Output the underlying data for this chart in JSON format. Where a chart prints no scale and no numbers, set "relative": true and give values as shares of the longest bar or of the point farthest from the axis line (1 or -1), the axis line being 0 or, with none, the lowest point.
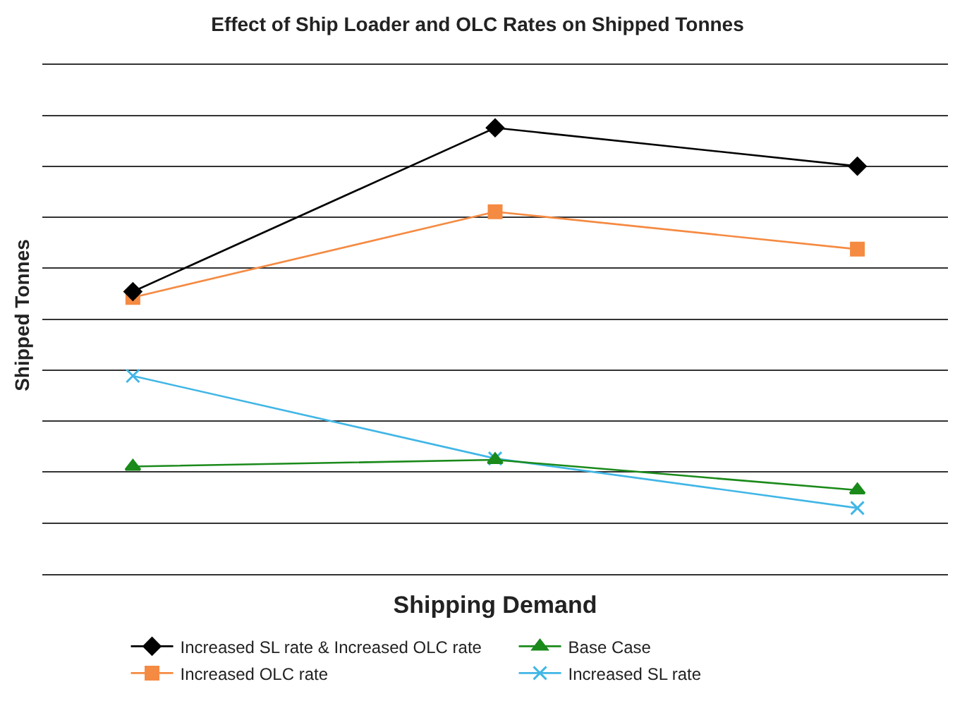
{
  "chart_data": {
    "type": "line",
    "title": "Effect of Ship Loader and OLC Rates on Shipped Tonnes",
    "xlabel": "Shipping Demand",
    "ylabel": "Shipped Tonnes",
    "relative": true,
    "categories": [
      null,
      null,
      null
    ],
    "grid": "y",
    "legend": "bottom",
    "tick_labels": false,
    "line_style": "solid",
    "series": [
      {
        "name": "Increased SL rate & Increased OLC rate",
        "color": "#000000",
        "marker": "diamond",
        "values": [
          0.633,
          1,
          0.914
        ]
      },
      {
        "name": "Base Case",
        "color": "#1a8a1a",
        "marker": "triangle",
        "values": [
          0.241,
          0.256,
          0.188
        ]
      },
      {
        "name": "Increased OLC rate",
        "color": "#f58a42",
        "marker": "square",
        "values": [
          0.62,
          0.812,
          0.728
        ]
      },
      {
        "name": "Increased SL rate",
        "color": "#41b6e6",
        "marker": "cross",
        "values": [
          0.444,
          0.259,
          0.148
        ]
      }
    ]
  }
}
